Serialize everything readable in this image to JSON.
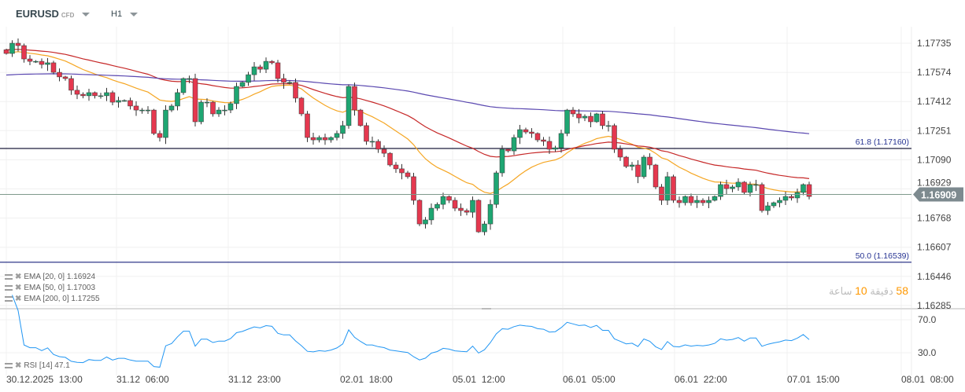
{
  "header": {
    "symbol": "EURUSD",
    "instrument_type": "CFD",
    "timeframe": "H1"
  },
  "price_axis": {
    "ticks": [
      "1.17735",
      "1.17574",
      "1.17412",
      "1.17251",
      "1.17090",
      "1.16929",
      "1.16768",
      "1.16607",
      "1.16446",
      "1.16285"
    ],
    "current_price": "1.16909",
    "current": 1.16909
  },
  "fib_levels": [
    {
      "label": "61.8 (1.17160)",
      "value": 1.1716
    },
    {
      "label": "50.0 (1.16539)",
      "value": 1.16539
    }
  ],
  "indicators": [
    {
      "label": "EMA [20, 0] 1.16924",
      "period": 20,
      "color": "#f5a623",
      "seed": 1.1768
    },
    {
      "label": "EMA [50, 0] 1.17003",
      "period": 50,
      "color": "#c62828",
      "seed": 1.177
    },
    {
      "label": "EMA [200, 0] 1.17255",
      "period": 200,
      "color": "#5a48b0",
      "seed": 1.1756
    }
  ],
  "rsi": {
    "label": "RSI [14] 47.1",
    "period": 14,
    "ticks": [
      "70.0",
      "30.0"
    ],
    "color": "#2196f3"
  },
  "countdown": {
    "minutes": "58",
    "minutes_unit": " دقيقة ",
    "hours": "10",
    "hours_unit": " ساعة"
  },
  "time_axis": [
    "30.12.2025  13:00",
    "31.12  06:00",
    "31.12  23:00",
    "02.01  18:00",
    "05.01  12:00",
    "06.01  05:00",
    "06.01  22:00",
    "07.01  15:00",
    "08.01  08:00"
  ],
  "colors": {
    "up": "#1ea672",
    "down": "#e5384f"
  },
  "chart_data": {
    "type": "candlestick",
    "closes": [
      1.17679,
      1.17735,
      1.17722,
      1.17649,
      1.17636,
      1.17636,
      1.17619,
      1.17628,
      1.17576,
      1.17551,
      1.17542,
      1.17478,
      1.17456,
      1.17448,
      1.17465,
      1.17448,
      1.17448,
      1.17465,
      1.17413,
      1.17422,
      1.17422,
      1.17392,
      1.1737,
      1.1737,
      1.1737,
      1.17242,
      1.1722,
      1.1737,
      1.17392,
      1.17465,
      1.17542,
      1.17542,
      1.17306,
      1.17413,
      1.17413,
      1.17349,
      1.1737,
      1.1737,
      1.17405,
      1.17499,
      1.17521,
      1.17563,
      1.17606,
      1.17593,
      1.17636,
      1.17628,
      1.17542,
      1.17521,
      1.17521,
      1.17435,
      1.17349,
      1.1722,
      1.17207,
      1.1722,
      1.17207,
      1.1722,
      1.17242,
      1.17285,
      1.17499,
      1.1737,
      1.17285,
      1.17199,
      1.17199,
      1.17156,
      1.17134,
      1.1707,
      1.17049,
      1.17027,
      1.17006,
      1.16877,
      1.16748,
      1.1677,
      1.16834,
      1.16855,
      1.16898,
      1.16877,
      1.16834,
      1.16821,
      1.16812,
      1.16877,
      1.16705,
      1.16748,
      1.16855,
      1.17027,
      1.17156,
      1.17147,
      1.1722,
      1.17263,
      1.1725,
      1.17242,
      1.17207,
      1.17199,
      1.17156,
      1.17164,
      1.17242,
      1.1737,
      1.17349,
      1.17327,
      1.17336,
      1.17306,
      1.17349,
      1.17285,
      1.17285,
      1.17156,
      1.17113,
      1.17062,
      1.1707,
      1.17006,
      1.17113,
      1.1707,
      1.1695,
      1.16877,
      1.17006,
      1.16877,
      1.16864,
      1.16898,
      1.16864,
      1.16877,
      1.16864,
      1.16877,
      1.16898,
      1.16963,
      1.16941,
      1.1695,
      1.16976,
      1.1692,
      1.16963,
      1.16963,
      1.16821,
      1.16847,
      1.16864,
      1.16877,
      1.16898,
      1.1689,
      1.1692,
      1.16963,
      1.16898
    ]
  }
}
